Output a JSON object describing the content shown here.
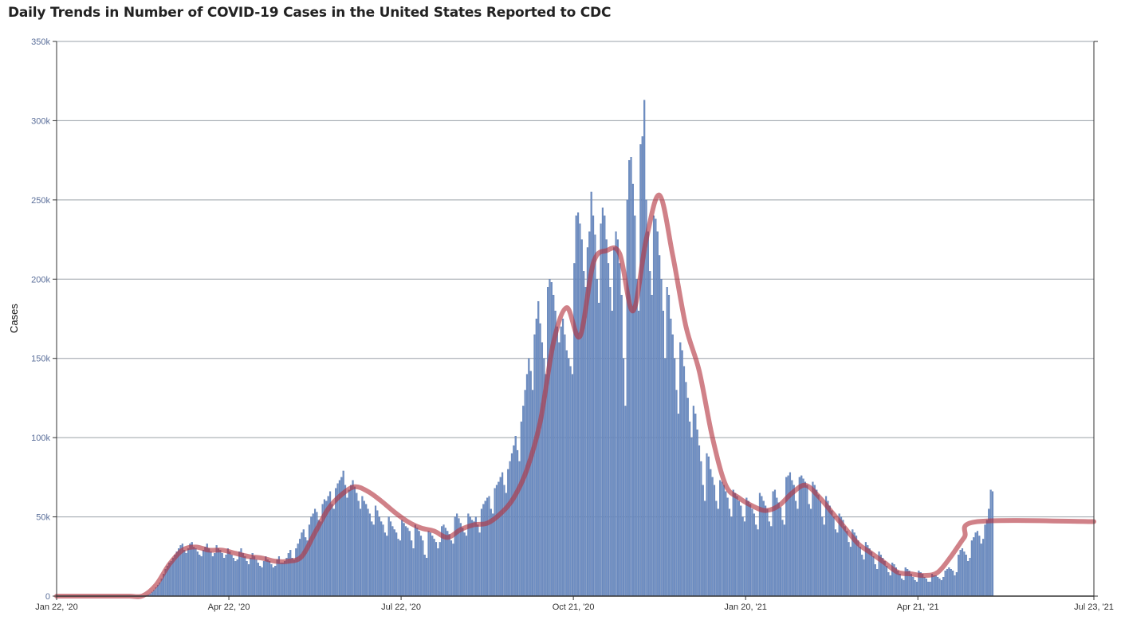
{
  "title": "Daily Trends in Number of COVID-19 Cases in the United States Reported to CDC",
  "colors": {
    "bar": "#6f8fc3",
    "bar_edge": "#4f6fa8",
    "line": "#b3343f",
    "grid": "#9aa0a8",
    "axis": "#333333"
  },
  "chart_data": {
    "type": "bar",
    "title": "Daily Trends in Number of COVID-19 Cases in the United States Reported to CDC",
    "xlabel": "",
    "ylabel": "Cases",
    "ylim": [
      0,
      350000
    ],
    "yticks": [
      "0",
      "50k",
      "100k",
      "150k",
      "200k",
      "250k",
      "300k",
      "350k"
    ],
    "yticks_values": [
      0,
      50000,
      100000,
      150000,
      200000,
      250000,
      300000,
      350000
    ],
    "xticks": [
      "Jan 22, '20",
      "Apr 22, '20",
      "Jul 22, '20",
      "Oct 21, '20",
      "Jan 20, '21",
      "Apr 21, '21",
      "Jul 23, '21"
    ],
    "xticks_day_index": [
      0,
      91,
      182,
      273,
      364,
      455,
      548
    ],
    "x_start": "2020-01-22",
    "x_end": "2021-07-23",
    "grid": true,
    "series": [
      {
        "type": "bar",
        "weekly_date_start": "2020-01-22",
        "weekly_daily_values": [
          [
            0,
            0,
            0,
            0,
            0,
            0,
            0
          ],
          [
            0,
            0,
            0,
            0,
            0,
            0,
            0
          ],
          [
            0,
            0,
            0,
            0,
            0,
            0,
            0
          ],
          [
            0,
            0,
            0,
            0,
            0,
            0,
            0
          ],
          [
            0,
            0,
            0,
            0,
            0,
            0,
            0
          ],
          [
            0,
            0,
            0,
            0,
            0,
            0,
            0
          ],
          [
            0,
            0,
            0,
            100,
            300,
            500,
            800
          ],
          [
            1500,
            2600,
            3800,
            5500,
            7000,
            8500,
            11000
          ],
          [
            14000,
            17000,
            19000,
            21000,
            22000,
            24000,
            26000
          ],
          [
            28000,
            30000,
            32000,
            33000,
            29000,
            27000,
            30000
          ],
          [
            33000,
            34000,
            31000,
            30000,
            28000,
            26000,
            25000
          ],
          [
            29000,
            31000,
            33000,
            30000,
            28000,
            25000,
            27000
          ],
          [
            32000,
            30000,
            29000,
            27000,
            24000,
            26000,
            30000
          ],
          [
            28000,
            26000,
            24000,
            22000,
            23000,
            28000,
            30000
          ],
          [
            27000,
            25000,
            22000,
            20000,
            24000,
            27000,
            25000
          ],
          [
            23000,
            21000,
            19000,
            18000,
            22000,
            25000,
            23000
          ],
          [
            22000,
            20000,
            18000,
            19000,
            23000,
            25000,
            21000
          ],
          [
            21000,
            22000,
            24000,
            27000,
            29000,
            24000,
            23000
          ],
          [
            30000,
            33000,
            36000,
            40000,
            42000,
            37000,
            35000
          ],
          [
            45000,
            50000,
            52000,
            55000,
            53000,
            48000,
            47000
          ],
          [
            58000,
            61000,
            60000,
            63000,
            66000,
            58000,
            55000
          ],
          [
            68000,
            71000,
            73000,
            75000,
            79000,
            70000,
            62000
          ],
          [
            67000,
            70000,
            73000,
            69000,
            65000,
            60000,
            55000
          ],
          [
            63000,
            60000,
            58000,
            55000,
            52000,
            47000,
            45000
          ],
          [
            57000,
            54000,
            50000,
            47000,
            45000,
            40000,
            38000
          ],
          [
            50000,
            47000,
            44000,
            42000,
            40000,
            36000,
            35000
          ],
          [
            48000,
            46000,
            44000,
            43000,
            41000,
            35000,
            30000
          ],
          [
            45000,
            43000,
            41000,
            38000,
            35000,
            26000,
            24000
          ],
          [
            41000,
            40000,
            38000,
            36000,
            34000,
            30000,
            34000
          ],
          [
            44000,
            45000,
            43000,
            41000,
            39000,
            35000,
            33000
          ],
          [
            50000,
            52000,
            49000,
            46000,
            43000,
            40000,
            38000
          ],
          [
            52000,
            50000,
            48000,
            47000,
            50000,
            45000,
            40000
          ],
          [
            55000,
            58000,
            60000,
            62000,
            63000,
            55000,
            52000
          ],
          [
            68000,
            70000,
            72000,
            75000,
            78000,
            70000,
            65000
          ],
          [
            80000,
            85000,
            90000,
            95000,
            101000,
            92000,
            85000
          ],
          [
            110000,
            120000,
            130000,
            140000,
            150000,
            142000,
            130000
          ],
          [
            165000,
            175000,
            186000,
            172000,
            160000,
            150000,
            140000
          ],
          [
            195000,
            200000,
            198000,
            190000,
            180000,
            170000,
            160000
          ],
          [
            170000,
            175000,
            165000,
            155000,
            150000,
            145000,
            140000
          ],
          [
            210000,
            240000,
            242000,
            235000,
            225000,
            205000,
            195000
          ],
          [
            220000,
            230000,
            255000,
            240000,
            228000,
            200000,
            185000
          ],
          [
            235000,
            245000,
            240000,
            225000,
            210000,
            195000,
            180000
          ],
          [
            220000,
            230000,
            225000,
            210000,
            190000,
            150000,
            120000
          ],
          [
            250000,
            275000,
            277000,
            260000,
            240000,
            200000,
            180000
          ],
          [
            285000,
            290000,
            313000,
            250000,
            230000,
            205000,
            190000
          ],
          [
            240000,
            238000,
            230000,
            215000,
            200000,
            180000,
            150000
          ],
          [
            195000,
            190000,
            175000,
            165000,
            150000,
            130000,
            115000
          ],
          [
            160000,
            155000,
            145000,
            135000,
            125000,
            110000,
            100000
          ],
          [
            120000,
            115000,
            105000,
            95000,
            85000,
            70000,
            60000
          ],
          [
            90000,
            88000,
            80000,
            75000,
            70000,
            60000,
            55000
          ],
          [
            73000,
            72000,
            70000,
            66000,
            62000,
            55000,
            50000
          ],
          [
            67000,
            65000,
            63000,
            60000,
            57000,
            50000,
            47000
          ],
          [
            62000,
            60000,
            58000,
            55000,
            52000,
            45000,
            42000
          ],
          [
            65000,
            63000,
            60000,
            57000,
            55000,
            47000,
            44000
          ],
          [
            66000,
            67000,
            62000,
            59000,
            56000,
            48000,
            45000
          ],
          [
            75000,
            76000,
            78000,
            73000,
            70000,
            60000,
            55000
          ],
          [
            75000,
            76000,
            74000,
            72000,
            70000,
            58000,
            55000
          ],
          [
            72000,
            70000,
            67000,
            64000,
            60000,
            50000,
            45000
          ],
          [
            63000,
            60000,
            57000,
            54000,
            50000,
            42000,
            40000
          ],
          [
            52000,
            50000,
            48000,
            44000,
            41000,
            34000,
            31000
          ],
          [
            42000,
            40000,
            38000,
            35000,
            31000,
            26000,
            23000
          ],
          [
            34000,
            32000,
            30000,
            28000,
            25000,
            20000,
            17000
          ],
          [
            28000,
            26000,
            24000,
            22000,
            19000,
            15000,
            13000
          ],
          [
            21000,
            20000,
            18000,
            16000,
            14000,
            11000,
            10000
          ],
          [
            18000,
            17000,
            16000,
            14000,
            12000,
            10000,
            9000
          ],
          [
            16000,
            15000,
            14000,
            12000,
            11000,
            9000,
            9000
          ],
          [
            14000,
            13000,
            13000,
            12000,
            11000,
            10000,
            12000
          ],
          [
            16000,
            17000,
            18000,
            17000,
            16000,
            13000,
            15000
          ],
          [
            26000,
            29000,
            30000,
            28000,
            26000,
            22000,
            24000
          ],
          [
            35000,
            37000,
            40000,
            41000,
            38000,
            33000,
            36000
          ],
          [
            45000,
            48000,
            55000,
            67000,
            66000
          ]
        ]
      },
      {
        "type": "line",
        "weekly_avg_values": [
          0,
          0,
          0,
          0,
          0,
          0,
          200,
          7000,
          20000,
          29000,
          31000,
          29000,
          29000,
          27000,
          25000,
          24000,
          22000,
          22000,
          25000,
          40000,
          55000,
          64000,
          69000,
          66000,
          60000,
          53000,
          47000,
          43000,
          41000,
          37000,
          42000,
          45000,
          46000,
          52000,
          62000,
          80000,
          110000,
          160000,
          182000,
          164000,
          210000,
          218000,
          216000,
          180000,
          225000,
          253000,
          215000,
          170000,
          142000,
          100000,
          70000,
          62000,
          57000,
          54000,
          57000,
          65000,
          70000,
          63000,
          53000,
          43000,
          33000,
          27000,
          21000,
          15000,
          14000,
          13000,
          15000,
          25000,
          37000,
          47000
        ]
      }
    ]
  }
}
